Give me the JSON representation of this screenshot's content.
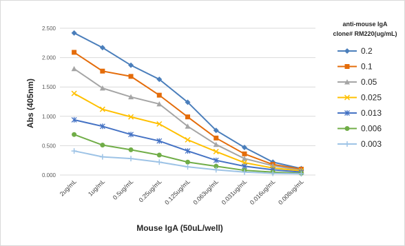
{
  "chart_data": {
    "type": "line",
    "categories": [
      "2ug/mL",
      "1ug/mL",
      "0.5ug/mL",
      "0.25ug/mL",
      "0.125ug/mL",
      "0.063ug/mL",
      "0.031ug/mL",
      "0.016ug/mL",
      "0.008ug/mL"
    ],
    "xlabel": "Mouse IgA (50uL/well)",
    "ylabel": "Abs (405nm)",
    "ylim": [
      0,
      2.5
    ],
    "yticks": [
      "0.000",
      "0.500",
      "1.000",
      "1.500",
      "2.000",
      "2.500"
    ],
    "grid": true,
    "legend": {
      "title_line1": "anti-mouse IgA",
      "title_line2": "clone# RM220(ug/mL)",
      "placement": "right"
    },
    "series": [
      {
        "name": "0.2",
        "color": "#4a7ebb",
        "marker": "diamond",
        "values": [
          2.42,
          2.17,
          1.87,
          1.63,
          1.24,
          0.76,
          0.47,
          0.22,
          0.11
        ]
      },
      {
        "name": "0.1",
        "color": "#e46c0a",
        "marker": "square",
        "values": [
          2.09,
          1.77,
          1.68,
          1.36,
          0.99,
          0.63,
          0.36,
          0.18,
          0.1
        ]
      },
      {
        "name": "0.05",
        "color": "#a5a5a5",
        "marker": "triangle",
        "values": [
          1.81,
          1.48,
          1.33,
          1.21,
          0.83,
          0.52,
          0.28,
          0.16,
          0.08
        ]
      },
      {
        "name": "0.025",
        "color": "#ffc000",
        "marker": "x",
        "values": [
          1.39,
          1.12,
          0.99,
          0.87,
          0.6,
          0.4,
          0.21,
          0.12,
          0.07
        ]
      },
      {
        "name": "0.013",
        "color": "#4472c4",
        "marker": "star",
        "values": [
          0.94,
          0.83,
          0.69,
          0.58,
          0.41,
          0.25,
          0.15,
          0.09,
          0.05
        ]
      },
      {
        "name": "0.006",
        "color": "#70ad47",
        "marker": "circle",
        "values": [
          0.69,
          0.51,
          0.43,
          0.34,
          0.22,
          0.15,
          0.08,
          0.05,
          0.03
        ]
      },
      {
        "name": "0.003",
        "color": "#9dc3e6",
        "marker": "plus",
        "values": [
          0.41,
          0.31,
          0.28,
          0.22,
          0.14,
          0.09,
          0.05,
          0.03,
          0.02
        ]
      }
    ]
  }
}
